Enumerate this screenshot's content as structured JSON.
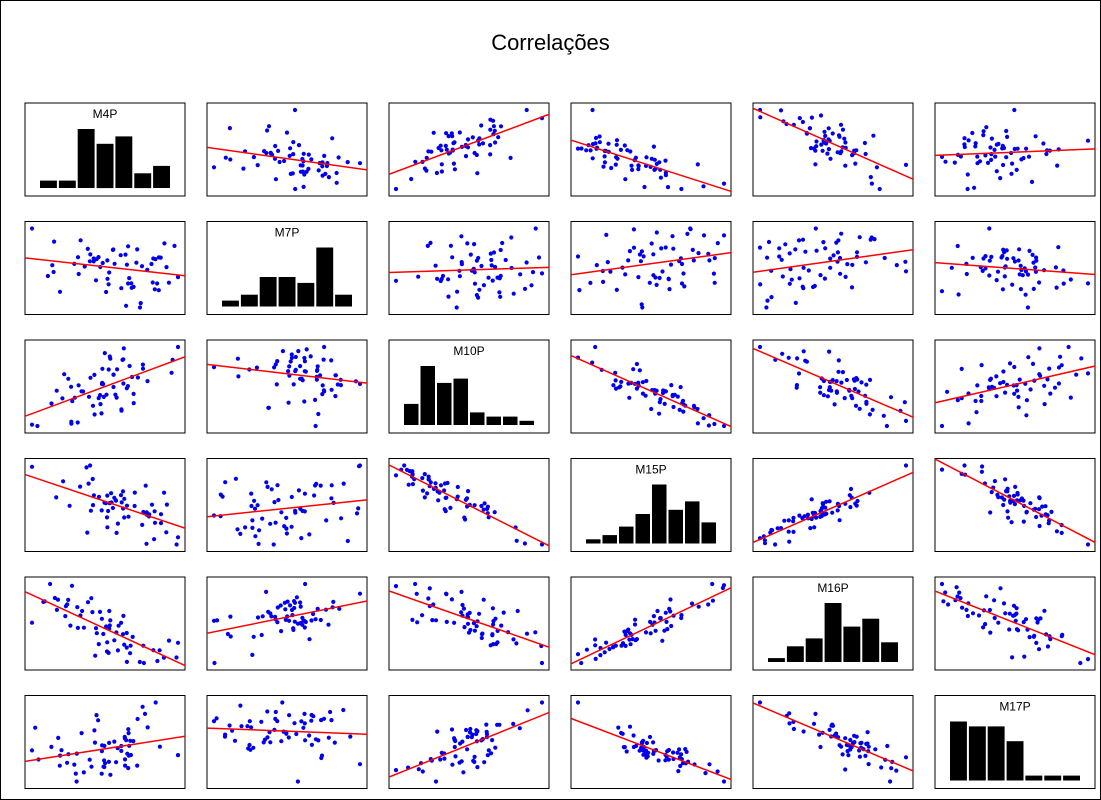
{
  "title": "Correlações",
  "colors": {
    "points": "#0000ee",
    "fit_line": "#ff0000",
    "bars": "#000000",
    "frame": "#000000"
  },
  "chart_data": {
    "type": "scatter-matrix",
    "title": "Correlações",
    "variables": [
      "M4P",
      "M7P",
      "M10P",
      "M15P",
      "M16P",
      "M17P"
    ],
    "grid": false,
    "diagonal": {
      "type": "histogram",
      "histograms": [
        {
          "label": "M4P",
          "counts": [
            1,
            1,
            8,
            6,
            7,
            2,
            3
          ]
        },
        {
          "label": "M7P",
          "counts": [
            1,
            2,
            5,
            5,
            4,
            10,
            2
          ]
        },
        {
          "label": "M10P",
          "counts": [
            5,
            14,
            10,
            11,
            3,
            2,
            2,
            1
          ]
        },
        {
          "label": "M15P",
          "counts": [
            1,
            2,
            4,
            7,
            14,
            8,
            10,
            5
          ]
        },
        {
          "label": "M16P",
          "counts": [
            1,
            4,
            6,
            15,
            9,
            11,
            5
          ]
        },
        {
          "label": "M17P",
          "counts": [
            12,
            11,
            11,
            8,
            1,
            1,
            1
          ]
        }
      ]
    },
    "off_diagonal": {
      "type": "scatter",
      "fit": "linear",
      "correlations": [
        [
          1.0,
          -0.3,
          0.75,
          -0.65,
          -0.7,
          0.45
        ],
        [
          -0.3,
          1.0,
          -0.1,
          0.3,
          0.3,
          -0.15
        ],
        [
          0.75,
          -0.1,
          1.0,
          -0.85,
          -0.75,
          0.55
        ],
        [
          -0.65,
          0.3,
          -0.85,
          1.0,
          0.9,
          -0.8
        ],
        [
          -0.7,
          0.3,
          -0.75,
          0.9,
          1.0,
          -0.75
        ],
        [
          0.45,
          -0.15,
          0.55,
          -0.8,
          -0.75,
          1.0
        ]
      ],
      "points_per_panel": 60
    }
  }
}
